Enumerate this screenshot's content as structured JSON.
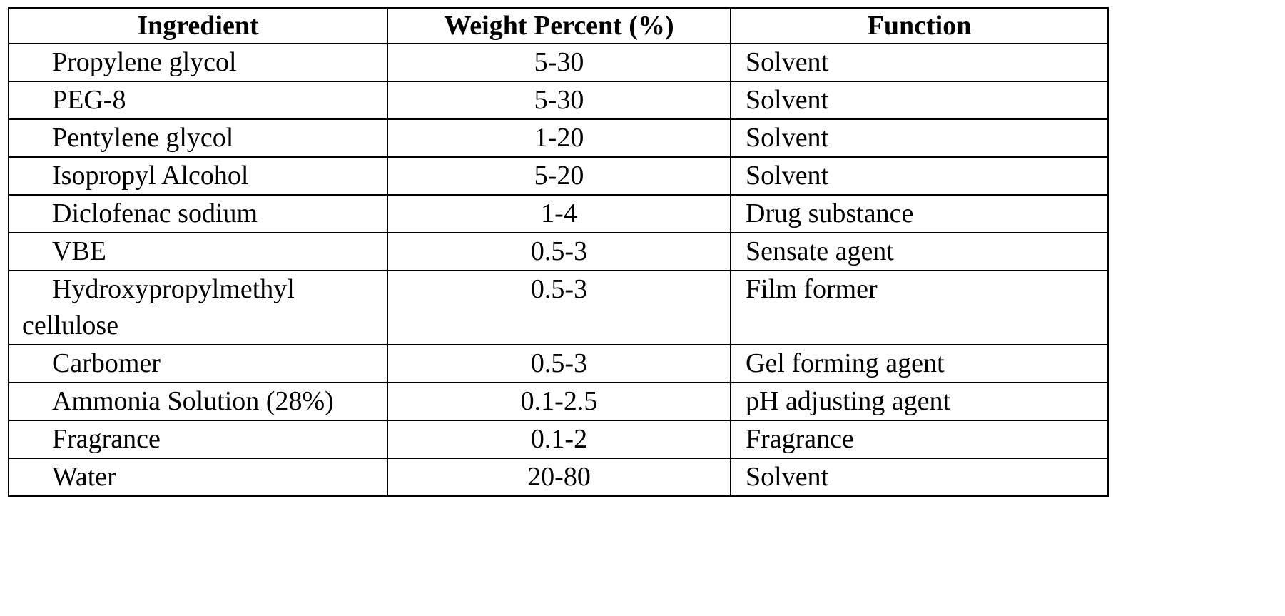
{
  "table": {
    "headers": [
      "Ingredient",
      "Weight Percent (%)",
      "Function"
    ],
    "rows": [
      {
        "ingredient": "Propylene glycol",
        "weight": "5-30",
        "function": "Solvent"
      },
      {
        "ingredient": "PEG-8",
        "weight": "5-30",
        "function": "Solvent"
      },
      {
        "ingredient": "Pentylene glycol",
        "weight": "1-20",
        "function": "Solvent"
      },
      {
        "ingredient": "Isopropyl Alcohol",
        "weight": "5-20",
        "function": "Solvent"
      },
      {
        "ingredient": "Diclofenac sodium",
        "weight": "1-4",
        "function": "Drug substance"
      },
      {
        "ingredient": "VBE",
        "weight": "0.5-3",
        "function": "Sensate agent"
      },
      {
        "ingredient": "Hydroxypropylmethyl cellulose",
        "weight": "0.5-3",
        "function": "Film former"
      },
      {
        "ingredient": "Carbomer",
        "weight": "0.5-3",
        "function": "Gel forming agent"
      },
      {
        "ingredient": "Ammonia Solution (28%)",
        "weight": "0.1-2.5",
        "function": "pH adjusting agent"
      },
      {
        "ingredient": "Fragrance",
        "weight": "0.1-2",
        "function": "Fragrance"
      },
      {
        "ingredient": "Water",
        "weight": "20-80",
        "function": "Solvent"
      }
    ]
  }
}
